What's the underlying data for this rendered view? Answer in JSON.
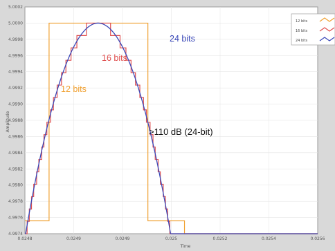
{
  "chart_data": {
    "type": "line",
    "xlabel": "Time",
    "ylabel": "Amplitude",
    "xlim": [
      0.0248,
      0.0256
    ],
    "ylim": [
      4.9974,
      5.0002
    ],
    "x_ticks": [
      "0.0248",
      "0.0249",
      "0.0249",
      "0.025",
      "0.0252",
      "0.0254",
      "0.0256"
    ],
    "y_ticks": [
      "5.0002",
      "5.0000",
      "4.9998",
      "4.9996",
      "4.9994",
      "4.9992",
      "4.9990",
      "4.9988",
      "4.9986",
      "4.9984",
      "4.9982",
      "4.9980",
      "4.9978",
      "4.9976",
      "4.9974"
    ],
    "series": [
      {
        "name": "12 bits",
        "color": "#f0a030",
        "quantization_step": 0.00244,
        "x_range": [
          0.0248,
          0.0256
        ]
      },
      {
        "name": "16 bits",
        "color": "#e05050",
        "quantization_step": 0.000153,
        "x_range": [
          0.0248,
          0.0256
        ]
      },
      {
        "name": "24 bits",
        "color": "#3a48b8",
        "quantization_step": 6e-07,
        "x_range": [
          0.0248,
          0.0256
        ]
      }
    ],
    "signal": {
      "shape": "parabola",
      "peak_x": 0.025,
      "peak_y": 5.0,
      "y_at_range_edge": 4.99735
    },
    "annotations": [
      "12 bits",
      "16 bits",
      "24 bits",
      ">110 dB (24-bit)"
    ],
    "grid": true,
    "legend_position": "top-right"
  }
}
